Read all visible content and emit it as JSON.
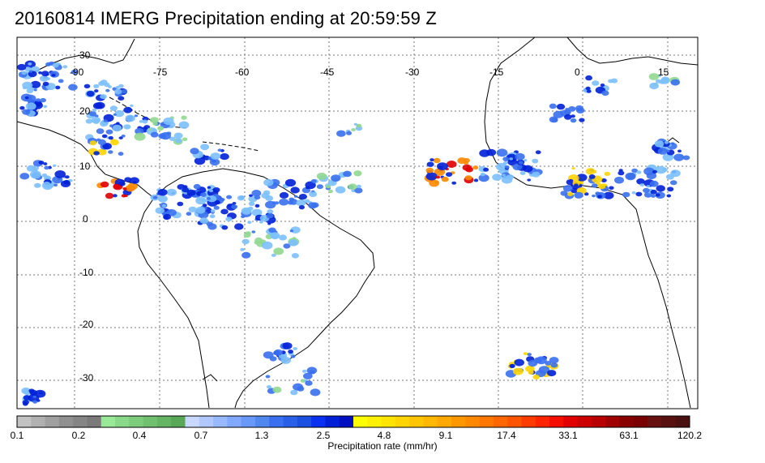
{
  "title": "20160814 IMERG Precipitation ending at 20:59:59 Z",
  "map": {
    "lon_labels": [
      "-90",
      "-75",
      "-60",
      "-45",
      "-30",
      "-15",
      "0",
      "15"
    ],
    "lat_labels": [
      "30",
      "20",
      "10",
      "0",
      "-10",
      "-20",
      "-30"
    ],
    "gridline_style": "dotted",
    "border_color": "#000000"
  },
  "colorbar": {
    "label": "Precipitation rate (mm/hr)",
    "tick_labels": [
      "0.1",
      "0.2",
      "0.4",
      "0.7",
      "1.3",
      "2.5",
      "4.8",
      "9.1",
      "17.4",
      "33.1",
      "63.1",
      "120.2"
    ],
    "colors": [
      "#c2c2c2",
      "#b0b0b0",
      "#a0a0a0",
      "#909090",
      "#858585",
      "#7a7a7a",
      "#98e898",
      "#8ad88a",
      "#7ccc7c",
      "#70c070",
      "#64b464",
      "#58a858",
      "#c8d8ff",
      "#b0c8ff",
      "#98b8ff",
      "#80a8ff",
      "#6898f8",
      "#5088f0",
      "#3a70f0",
      "#2a60e8",
      "#1c50e0",
      "#0a30f0",
      "#0020d8",
      "#0010c0",
      "#ffff00",
      "#fff200",
      "#ffe400",
      "#ffd500",
      "#ffc600",
      "#ffb700",
      "#ffa800",
      "#ff9800",
      "#ff8800",
      "#ff7700",
      "#ff6600",
      "#ff5400",
      "#ff3c00",
      "#ff2400",
      "#f50d00",
      "#e00000",
      "#cc0000",
      "#b80000",
      "#a00000",
      "#880000",
      "#780000",
      "#681010",
      "#581010",
      "#481010"
    ]
  }
}
